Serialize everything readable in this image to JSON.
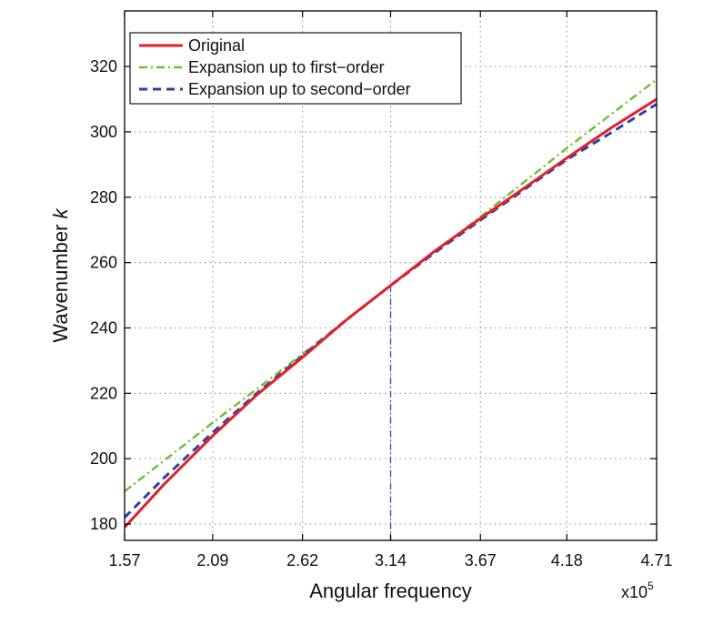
{
  "chart_data": {
    "type": "line",
    "title": "",
    "xlabel": "Angular frequency",
    "ylabel": "Wavenumber",
    "ylabel_symbol": "k",
    "x_multiplier_label": "x10",
    "x_multiplier_exp": "5",
    "xlim": [
      1.57,
      4.71
    ],
    "ylim": [
      175,
      337
    ],
    "x_tick_values": [
      1.57,
      2.09,
      2.62,
      3.14,
      3.67,
      4.18,
      4.71
    ],
    "x_tick_labels": [
      "1.57",
      "2.09",
      "2.62",
      "3.14",
      "3.67",
      "4.18",
      "4.71"
    ],
    "y_tick_values": [
      180,
      200,
      220,
      240,
      260,
      280,
      300,
      320
    ],
    "y_tick_labels": [
      "180",
      "200",
      "220",
      "240",
      "260",
      "280",
      "300",
      "320"
    ],
    "grid": true,
    "legend_position": "top-left",
    "reference_line": {
      "x": 3.14,
      "y_from": 175,
      "y_to": 253,
      "color": "#3b55b0"
    },
    "series": [
      {
        "name": "Original",
        "color": "#e0202a",
        "style": "solid",
        "x": [
          1.57,
          1.8,
          2.09,
          2.35,
          2.62,
          2.88,
          3.14,
          3.4,
          3.67,
          3.92,
          4.18,
          4.45,
          4.71
        ],
        "y": [
          179,
          192,
          207,
          219.5,
          231,
          242.5,
          253,
          263.5,
          273.5,
          282.5,
          292,
          301.5,
          310
        ]
      },
      {
        "name": "Expansion up to first−order",
        "color": "#66c230",
        "style": "dashdot",
        "x": [
          1.57,
          2.09,
          2.62,
          3.14,
          3.67,
          4.18,
          4.71
        ],
        "y": [
          190,
          211,
          232,
          253,
          274,
          295,
          316
        ]
      },
      {
        "name": "Expansion up to second−order",
        "color": "#2e3fa8",
        "style": "dashed",
        "x": [
          1.57,
          1.8,
          2.09,
          2.35,
          2.62,
          2.88,
          3.14,
          3.4,
          3.67,
          3.92,
          4.18,
          4.45,
          4.71
        ],
        "y": [
          182,
          194,
          208,
          220,
          231.5,
          242.5,
          253,
          263,
          273,
          282,
          291.5,
          300,
          308.5
        ]
      }
    ]
  }
}
